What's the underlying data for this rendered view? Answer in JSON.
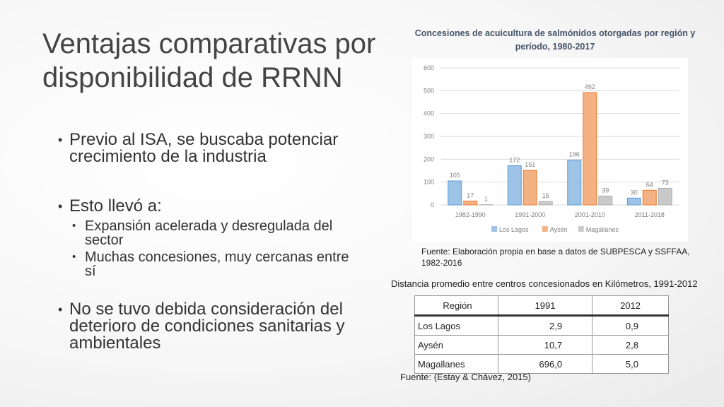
{
  "slide": {
    "title": "Ventajas comparativas por disponibilidad de RRNN",
    "bullets": [
      {
        "text": "Previo al ISA, se buscaba potenciar crecimiento de la industria",
        "sub": []
      },
      {
        "text": "Esto llevó a:",
        "sub": [
          "Expansión acelerada y desregulada del sector",
          "Muchas concesiones, muy cercanas entre sí"
        ]
      },
      {
        "text": "No se tuvo debida consideración del deterioro de condiciones sanitarias y ambientales",
        "sub": []
      }
    ]
  },
  "chart_data": {
    "type": "bar",
    "title": "Concesiones de acuicultura de salmónidos otorgadas por región y período, 1980-2017",
    "categories": [
      "1982-1990",
      "1991-2000",
      "2001-2010",
      "2011-2018"
    ],
    "series": [
      {
        "name": "Los Lagos",
        "values": [
          105,
          172,
          196,
          30
        ],
        "color": "#9dc3e6"
      },
      {
        "name": "Aysén",
        "values": [
          17,
          151,
          492,
          64
        ],
        "color": "#f4b183"
      },
      {
        "name": "Magallanes",
        "values": [
          1,
          15,
          39,
          73
        ],
        "color": "#c9c9c9"
      }
    ],
    "ylim": [
      0,
      600
    ],
    "yticks": [
      0,
      100,
      200,
      300,
      400,
      500,
      600
    ],
    "grid": true,
    "legend": "bottom",
    "source": "Fuente: Elaboración propia en base a datos de SUBPESCA y SSFFAA, 1982-2016"
  },
  "table": {
    "caption": "Distancia promedio entre centros concesionados en Kilómetros, 1991-2012",
    "headers": [
      "Región",
      "1991",
      "2012"
    ],
    "rows": [
      [
        "Los Lagos",
        "2,9",
        "0,9"
      ],
      [
        "Aysén",
        "10,7",
        "2,8"
      ],
      [
        "Magallanes",
        "696,0",
        "5,0"
      ]
    ],
    "source": "Fuente: (Estay & Chávez, 2015)"
  }
}
